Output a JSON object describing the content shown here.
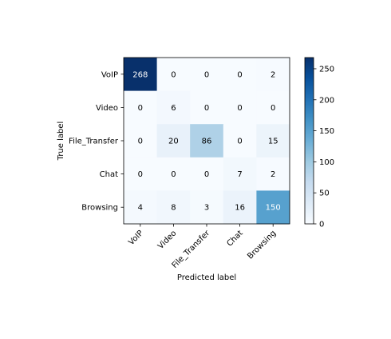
{
  "chart_data": {
    "type": "heatmap",
    "title": "",
    "xlabel": "Predicted label",
    "ylabel": "True label",
    "x_categories": [
      "VoIP",
      "Video",
      "File_Transfer",
      "Chat",
      "Browsing"
    ],
    "y_categories": [
      "VoIP",
      "Video",
      "File_Transfer",
      "Chat",
      "Browsing"
    ],
    "matrix": [
      [
        268,
        0,
        0,
        0,
        2
      ],
      [
        0,
        6,
        0,
        0,
        0
      ],
      [
        0,
        20,
        86,
        0,
        15
      ],
      [
        0,
        0,
        0,
        7,
        2
      ],
      [
        4,
        8,
        3,
        16,
        150
      ]
    ],
    "colormap": "Blues",
    "color_range": [
      0,
      268
    ],
    "colorbar": {
      "ticks": [
        0,
        50,
        100,
        150,
        200,
        250
      ]
    },
    "text_colors": {
      "light": "#ffffff",
      "dark": "#000000"
    },
    "x_tick_rotation_deg": 45,
    "grid": false
  }
}
